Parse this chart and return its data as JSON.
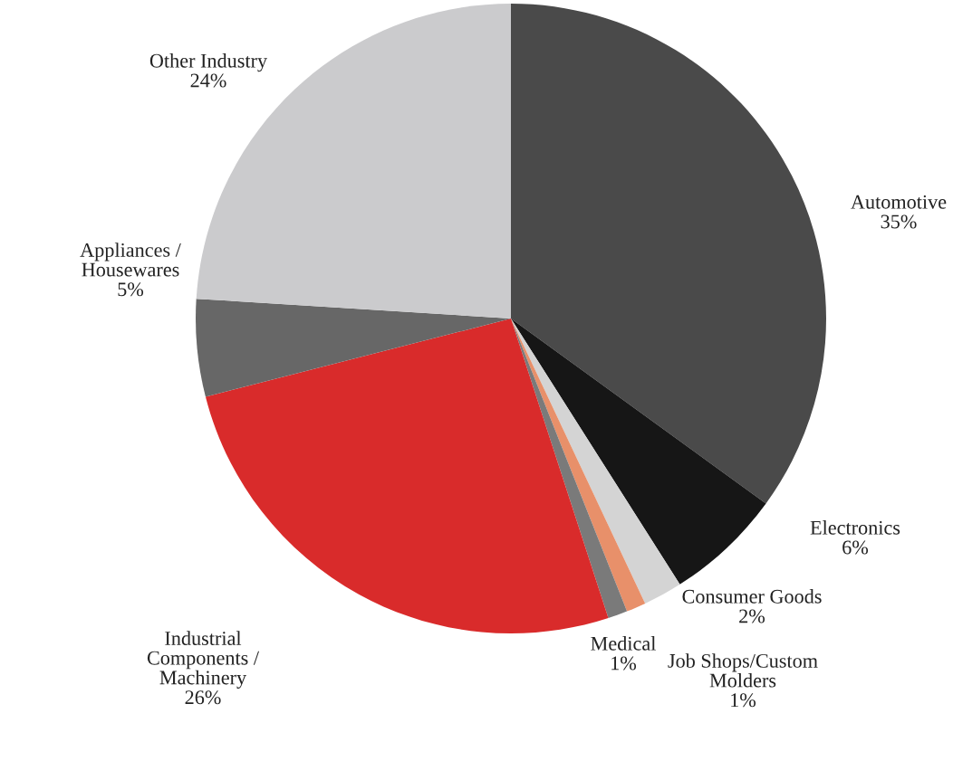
{
  "chart_data": {
    "type": "pie",
    "categories": [
      "Automotive",
      "Electronics",
      "Consumer Goods",
      "Job Shops/Custom\nMolders",
      "Medical",
      "Industrial\nComponents /\nMachinery",
      "Appliances /\nHousewares",
      "Other Industry"
    ],
    "values": [
      35,
      6,
      2,
      1,
      1,
      26,
      5,
      24
    ],
    "value_labels": [
      "35%",
      "6%",
      "2%",
      "1%",
      "1%",
      "26%",
      "5%",
      "24%"
    ],
    "colors": [
      "#4a4a4a",
      "#161616",
      "#d4d4d4",
      "#e8906a",
      "#7a7a7a",
      "#d92b2b",
      "#676767",
      "#cbcbcd"
    ]
  }
}
